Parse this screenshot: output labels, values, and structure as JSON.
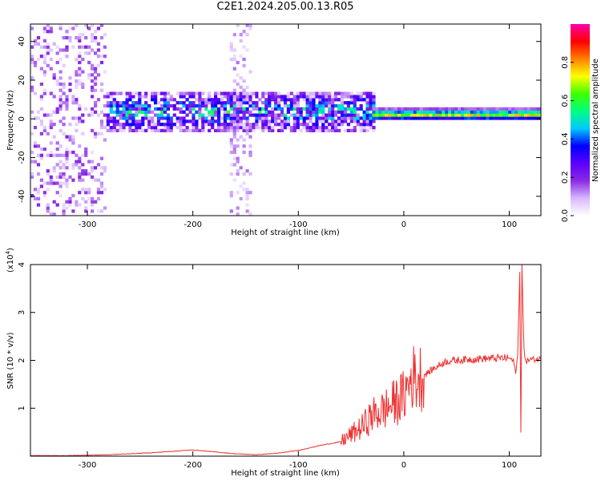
{
  "title": "C2E1.2024.205.00.13.R05",
  "chart_data": [
    {
      "type": "heatmap",
      "title": "C2E1.2024.205.00.13.R05",
      "xlabel": "Height of straight line (km)",
      "ylabel": "Frequency (Hz)",
      "xlim": [
        -354,
        130
      ],
      "ylim": [
        -50,
        49
      ],
      "xticks": [
        -300,
        -200,
        -100,
        0,
        100
      ],
      "yticks": [
        -40,
        -20,
        0,
        20,
        40
      ],
      "colorbar": {
        "label": "Normalized spectral amplitude",
        "range": [
          0.0,
          1.0
        ],
        "ticks": [
          0.0,
          0.2,
          0.4,
          0.6,
          0.8
        ],
        "tick_labels": [
          "0.0",
          "0.2",
          "0.4",
          "0.6",
          "0.8"
        ],
        "colormap": [
          "#ffffff",
          "#d8b8ff",
          "#8a2be2",
          "#5a00ff",
          "#0000ff",
          "#00c8ff",
          "#00ff80",
          "#40ff00",
          "#ffff00",
          "#ff8000",
          "#ff0000",
          "#ff00aa"
        ]
      },
      "features": [
        {
          "x_range": [
            -354,
            -283
          ],
          "f_range": [
            -50,
            49
          ],
          "amplitude": 0.1,
          "pattern": "broadband noise"
        },
        {
          "x_range": [
            -167,
            -147
          ],
          "f_range": [
            -50,
            49
          ],
          "amplitude": 0.07,
          "pattern": "broadband noise"
        },
        {
          "x_range": [
            -283,
            -30
          ],
          "f_center": 3,
          "f_halfwidth": 11,
          "amplitude": 0.35,
          "pattern": "noisy band"
        },
        {
          "x_range": [
            -30,
            130
          ],
          "f_center": 1.5,
          "f_halfwidth": 2,
          "amplitude": 0.75,
          "pattern": "narrow band"
        }
      ]
    },
    {
      "type": "line",
      "xlabel": "Height of straight line (km)",
      "ylabel": "SNR (10 * v/v)",
      "yscale_label": "(x10",
      "yscale_exp": "4",
      "yscale_close": ")",
      "xlim": [
        -354,
        130
      ],
      "ylim": [
        0,
        4
      ],
      "xticks": [
        -300,
        -200,
        -100,
        0,
        100
      ],
      "yticks": [
        1,
        2,
        3,
        4
      ],
      "color": "#f03030",
      "series": [
        {
          "x": [
            -354,
            -320,
            -300,
            -280,
            -260,
            -240,
            -220,
            -200,
            -180,
            -160,
            -140,
            -120,
            -100,
            -80,
            -60,
            -50,
            -40,
            -30,
            -20,
            -10,
            0,
            5,
            8,
            10,
            15,
            20,
            30,
            40,
            60,
            80,
            100,
            104,
            106,
            108,
            110,
            111,
            112,
            113,
            114,
            116,
            120,
            130
          ],
          "y": [
            0.01,
            0.01,
            0.02,
            0.03,
            0.05,
            0.07,
            0.1,
            0.13,
            0.09,
            0.05,
            0.03,
            0.06,
            0.12,
            0.22,
            0.3,
            0.45,
            0.6,
            0.85,
            0.95,
            1.1,
            1.25,
            1.5,
            1.7,
            1.6,
            1.65,
            1.7,
            1.85,
            1.98,
            2.02,
            2.04,
            2.05,
            1.98,
            1.75,
            2.1,
            3.8,
            0.5,
            4.0,
            3.0,
            2.2,
            1.98,
            2.02,
            2.03
          ]
        }
      ]
    }
  ]
}
